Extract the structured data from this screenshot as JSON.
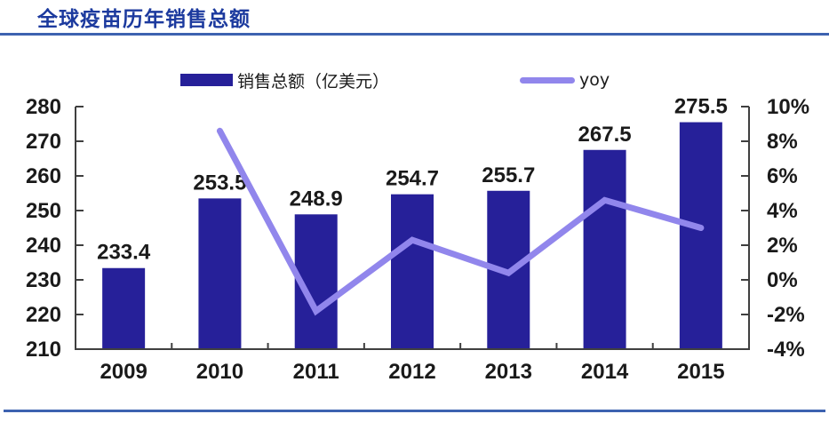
{
  "header": {
    "title": "全球疫苗历年销售总额"
  },
  "legend": {
    "items": [
      {
        "label": "销售总额（亿美元）",
        "swatch": "bar-swatch",
        "series": "sales"
      },
      {
        "label": "yoy",
        "swatch": "line-swatch",
        "series": "yoy"
      }
    ]
  },
  "colors": {
    "bar": "#262099",
    "line": "#9186EC",
    "title_text": "#1C3A9E",
    "divider": "#3D62B0",
    "axis_line": "#3F3F3F",
    "label_text": "#1A1A1A"
  },
  "chart_data": {
    "type": "bar",
    "subtype": "combo-bar-line-dual-axis",
    "title": "全球疫苗历年销售总额",
    "categories": [
      "2009",
      "2010",
      "2011",
      "2012",
      "2013",
      "2014",
      "2015"
    ],
    "series": [
      {
        "name": "销售总额（亿美元）",
        "type": "bar",
        "axis": "left",
        "values": [
          233.4,
          253.5,
          248.9,
          254.7,
          255.7,
          267.5,
          275.5
        ]
      },
      {
        "name": "yoy",
        "type": "line",
        "axis": "right",
        "unit": "%",
        "values": [
          null,
          8.6,
          -1.8,
          2.3,
          0.4,
          4.6,
          3.0
        ]
      }
    ],
    "left_axis": {
      "min": 210,
      "max": 280,
      "step": 10,
      "tick_labels": [
        "210",
        "220",
        "230",
        "240",
        "250",
        "260",
        "270",
        "280"
      ]
    },
    "right_axis": {
      "min": -4,
      "max": 10,
      "step": 2,
      "tick_labels": [
        "-4%",
        "-2%",
        "0%",
        "2%",
        "4%",
        "6%",
        "8%",
        "10%"
      ]
    },
    "grid": false,
    "legend_position": "top",
    "bar_value_labels_shown": true
  }
}
